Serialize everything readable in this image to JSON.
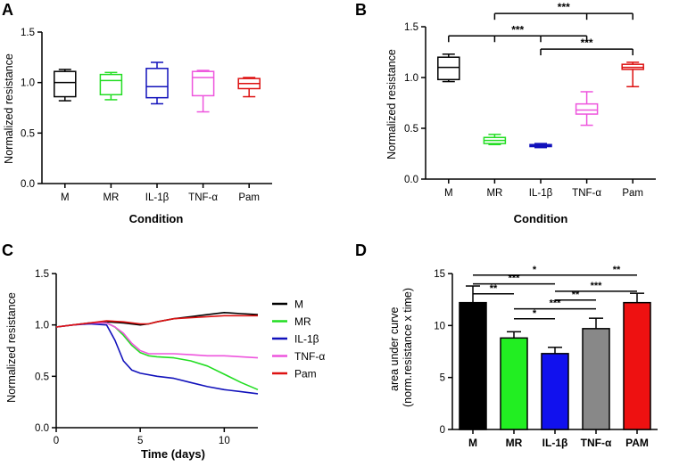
{
  "chart_data": [
    {
      "panel": "A",
      "type": "box",
      "title": "",
      "xlabel": "Condition",
      "ylabel": "Normalized resistance",
      "ylim": [
        0,
        1.5
      ],
      "yticks": [
        "0.0",
        "0.5",
        "1.0",
        "1.5"
      ],
      "categories": [
        "M",
        "MR",
        "IL-1β",
        "TNF-α",
        "Pam"
      ],
      "colors": [
        "#000000",
        "#22dd22",
        "#1111bb",
        "#ee55dd",
        "#dd1111"
      ],
      "boxes": [
        {
          "min": 0.82,
          "q1": 0.86,
          "median": 1.0,
          "q3": 1.11,
          "max": 1.13
        },
        {
          "min": 0.83,
          "q1": 0.88,
          "median": 1.02,
          "q3": 1.08,
          "max": 1.1
        },
        {
          "min": 0.79,
          "q1": 0.85,
          "median": 0.96,
          "q3": 1.14,
          "max": 1.2
        },
        {
          "min": 0.71,
          "q1": 0.87,
          "median": 1.05,
          "q3": 1.11,
          "max": 1.12
        },
        {
          "min": 0.86,
          "q1": 0.94,
          "median": 0.99,
          "q3": 1.04,
          "max": 1.05
        }
      ],
      "significance": []
    },
    {
      "panel": "B",
      "type": "box",
      "title": "",
      "xlabel": "Condition",
      "ylabel": "Normalized resistance",
      "ylim": [
        0,
        1.5
      ],
      "yticks": [
        "0.0",
        "0.5",
        "1.0",
        "1.5"
      ],
      "categories": [
        "M",
        "MR",
        "IL-1β",
        "TNF-α",
        "Pam"
      ],
      "colors": [
        "#000000",
        "#22dd22",
        "#1111bb",
        "#ee55dd",
        "#dd1111"
      ],
      "boxes": [
        {
          "min": 0.96,
          "q1": 0.98,
          "median": 1.1,
          "q3": 1.2,
          "max": 1.23
        },
        {
          "min": 0.34,
          "q1": 0.35,
          "median": 0.38,
          "q3": 0.41,
          "max": 0.44
        },
        {
          "min": 0.31,
          "q1": 0.32,
          "median": 0.33,
          "q3": 0.34,
          "max": 0.35
        },
        {
          "min": 0.53,
          "q1": 0.64,
          "median": 0.68,
          "q3": 0.74,
          "max": 0.86
        },
        {
          "min": 0.91,
          "q1": 1.08,
          "median": 1.1,
          "q3": 1.13,
          "max": 1.15
        }
      ],
      "significance": [
        {
          "label": "***",
          "from": 1,
          "to": 4,
          "drops": [
            1,
            3,
            4
          ],
          "level": 1.63
        },
        {
          "label": "***",
          "from": 0,
          "to": 3,
          "drops": [
            0,
            1,
            2,
            3
          ],
          "level": 1.41
        },
        {
          "label": "***",
          "from": 2,
          "to": 4,
          "drops": [
            2,
            4
          ],
          "level": 1.28
        }
      ]
    },
    {
      "panel": "C",
      "type": "line",
      "title": "",
      "xlabel": "Time (days)",
      "ylabel": "Normalized resistance",
      "xlim": [
        0,
        12
      ],
      "ylim": [
        0,
        1.5
      ],
      "xticks": [
        "0",
        "5",
        "10"
      ],
      "yticks": [
        "0.0",
        "0.5",
        "1.0",
        "1.5"
      ],
      "legend_position": "right",
      "series": [
        {
          "name": "M",
          "color": "#000000",
          "x": [
            0,
            1,
            2,
            3,
            4,
            5,
            5.5,
            6,
            7,
            8,
            9,
            10,
            11,
            12
          ],
          "y": [
            0.98,
            1.0,
            1.02,
            1.03,
            1.02,
            1.0,
            1.01,
            1.03,
            1.06,
            1.08,
            1.1,
            1.12,
            1.11,
            1.1
          ]
        },
        {
          "name": "MR",
          "color": "#22dd22",
          "x": [
            0,
            1,
            2,
            3,
            3.5,
            4,
            4.5,
            5,
            5.5,
            6,
            7,
            8,
            9,
            10,
            11,
            12
          ],
          "y": [
            0.98,
            1.0,
            1.02,
            1.02,
            0.98,
            0.9,
            0.8,
            0.73,
            0.7,
            0.69,
            0.68,
            0.65,
            0.6,
            0.52,
            0.44,
            0.37
          ]
        },
        {
          "name": "IL-1β",
          "color": "#1111bb",
          "x": [
            0,
            1,
            2,
            3,
            3.5,
            4,
            4.5,
            5,
            6,
            7,
            8,
            9,
            10,
            11,
            12
          ],
          "y": [
            0.98,
            1.0,
            1.01,
            1.0,
            0.85,
            0.65,
            0.56,
            0.53,
            0.5,
            0.48,
            0.44,
            0.4,
            0.37,
            0.35,
            0.33
          ]
        },
        {
          "name": "TNF-α",
          "color": "#ee55dd",
          "x": [
            0,
            1,
            2,
            3,
            3.5,
            4,
            4.5,
            5,
            5.5,
            6,
            7,
            8,
            9,
            10,
            11,
            12
          ],
          "y": [
            0.98,
            1.0,
            1.02,
            1.02,
            0.98,
            0.92,
            0.82,
            0.75,
            0.72,
            0.72,
            0.72,
            0.71,
            0.7,
            0.7,
            0.69,
            0.68
          ]
        },
        {
          "name": "Pam",
          "color": "#dd1111",
          "x": [
            0,
            1,
            2,
            3,
            4,
            5,
            5.5,
            6,
            7,
            8,
            9,
            10,
            11,
            12
          ],
          "y": [
            0.98,
            1.0,
            1.02,
            1.04,
            1.03,
            1.01,
            1.01,
            1.03,
            1.06,
            1.07,
            1.08,
            1.09,
            1.09,
            1.09
          ]
        }
      ]
    },
    {
      "panel": "D",
      "type": "bar",
      "title": "",
      "xlabel": "",
      "ylabel": "area under curve\n(norm.resistance x time)",
      "ylim": [
        0,
        15
      ],
      "yticks": [
        "0",
        "5",
        "10",
        "15"
      ],
      "categories": [
        "M",
        "MR",
        "IL-1β",
        "TNF-α",
        "PAM"
      ],
      "colors": [
        "#000000",
        "#22ee22",
        "#1111ee",
        "#888888",
        "#ee1111"
      ],
      "values": [
        12.2,
        8.8,
        7.3,
        9.7,
        12.2
      ],
      "errors": [
        1.6,
        0.6,
        0.6,
        1.0,
        0.9
      ],
      "significance": [
        {
          "label": "*",
          "from": 0,
          "to": 3,
          "level": 14.85
        },
        {
          "label": "**",
          "from": 3,
          "to": 4,
          "level": 14.85
        },
        {
          "label": "***",
          "from": 0,
          "to": 2,
          "level": 14.0
        },
        {
          "label": "**",
          "from": 0,
          "to": 1,
          "level": 13.05
        },
        {
          "label": "***",
          "from": 2,
          "to": 4,
          "level": 13.3
        },
        {
          "label": "**",
          "from": 2,
          "to": 3,
          "level": 12.45
        },
        {
          "label": "***",
          "from": 1,
          "to": 3,
          "level": 11.6
        },
        {
          "label": "*",
          "from": 1,
          "to": 2,
          "level": 10.65
        }
      ]
    }
  ]
}
